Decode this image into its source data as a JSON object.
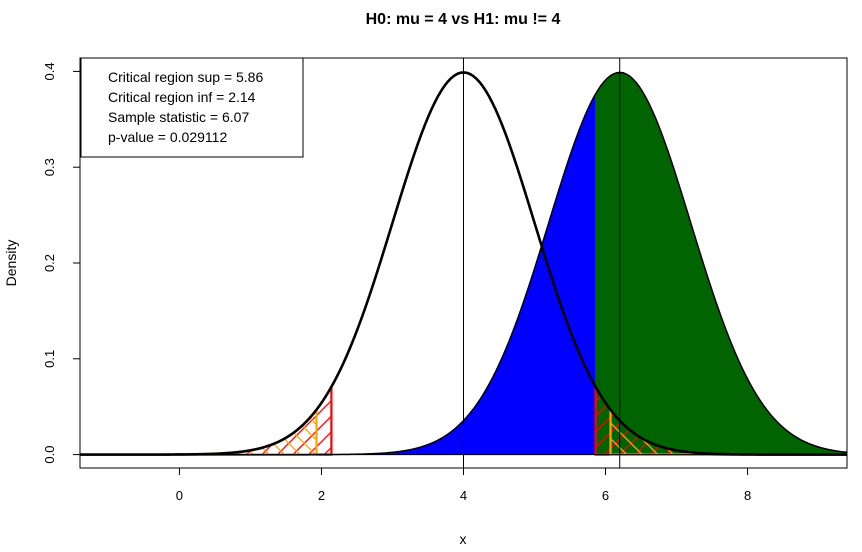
{
  "chart_data": {
    "type": "area",
    "title": "H0: mu =  4  vs H1: mu !=  4",
    "xlabel": "x",
    "ylabel": "Density",
    "xlim": [
      -1.4,
      9.4
    ],
    "ylim": [
      -0.014,
      0.414
    ],
    "xticks": [
      0,
      2,
      4,
      6,
      8
    ],
    "yticks": [
      0.0,
      0.1,
      0.2,
      0.3,
      0.4
    ],
    "xtick_labels": [
      "0",
      "2",
      "4",
      "6",
      "8"
    ],
    "ytick_labels": [
      "0.0",
      "0.1",
      "0.2",
      "0.3",
      "0.4"
    ],
    "grid": false,
    "legend_position": "top-left",
    "h0_mean": 4,
    "h1_mean": 6.2,
    "sd": 1,
    "critical_sup": 5.86,
    "critical_inf": 2.14,
    "sample_statistic": 6.07,
    "p_value": 0.029112,
    "vertical_lines": [
      4,
      6.2
    ],
    "legend_lines": [
      "Critical region sup =  5.86",
      "Critical region inf =  2.14",
      "Sample statistic =  6.07",
      "p-value =  0.029112"
    ],
    "colors": {
      "beta_region": "#0000ff",
      "power_region": "#006400",
      "alpha_hatch": "#ff0000",
      "pvalue_hatch": "#ffa500",
      "curve": "#000000"
    }
  }
}
